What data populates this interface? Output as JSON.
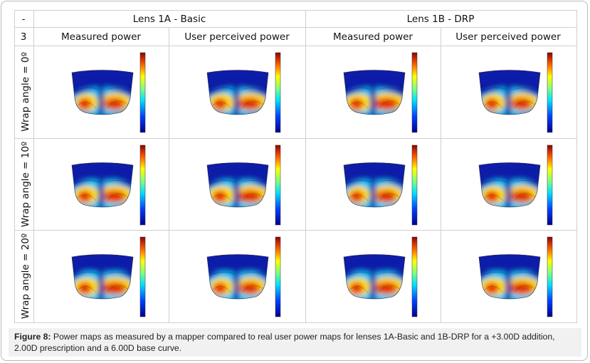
{
  "table": {
    "header": [
      "-",
      "Lens 1A - Basic",
      "Lens 1B - DRP"
    ],
    "subheader": [
      "3",
      "Measured power",
      "User perceived power",
      "Measured power",
      "User perceived power"
    ],
    "rows": [
      "Wrap angle = 0º",
      "Wrap angle = 10º",
      "Wrap angle = 20º"
    ]
  },
  "caption": {
    "label": "Figure 8:",
    "text": "Power maps as measured by a mapper compared to real user power maps for lenses 1A-Basic and 1B-DRP for a +3.00D addition, 2.00D prescription and a 6.00D base curve."
  }
}
